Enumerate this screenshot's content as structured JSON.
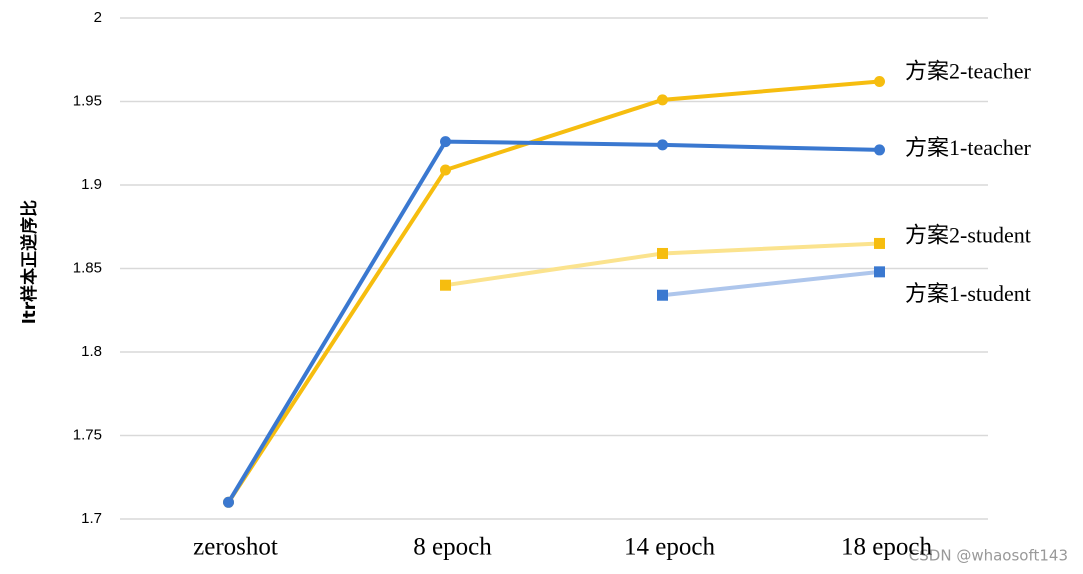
{
  "chart_data": {
    "type": "line",
    "y_label": "ltr样本正逆序比",
    "categories": [
      "zeroshot",
      "8 epoch",
      "14 epoch",
      "18 epoch"
    ],
    "series": [
      {
        "name": "方案2-teacher",
        "color": "#f6bd0f",
        "line_color": "#f6bd0f",
        "marker": "circle",
        "values": [
          1.71,
          1.909,
          1.951,
          1.962
        ]
      },
      {
        "name": "方案1-teacher",
        "color": "#3a78d0",
        "line_color": "#3a78d0",
        "marker": "circle",
        "values": [
          1.71,
          1.926,
          1.924,
          1.921
        ]
      },
      {
        "name": "方案2-student",
        "color": "#f6bd0f",
        "line_color": "#fbe38e",
        "marker": "square",
        "values": [
          null,
          1.84,
          1.859,
          1.865
        ]
      },
      {
        "name": "方案1-student",
        "color": "#3a78d0",
        "line_color": "#aec6ec",
        "marker": "square",
        "values": [
          null,
          null,
          1.834,
          1.848
        ]
      }
    ],
    "ylim": [
      1.7,
      2
    ],
    "yticks": [
      1.7,
      1.75,
      1.8,
      1.85,
      1.9,
      1.95,
      2
    ],
    "grid": true,
    "watermark": "CSDN @whaosoft143"
  }
}
